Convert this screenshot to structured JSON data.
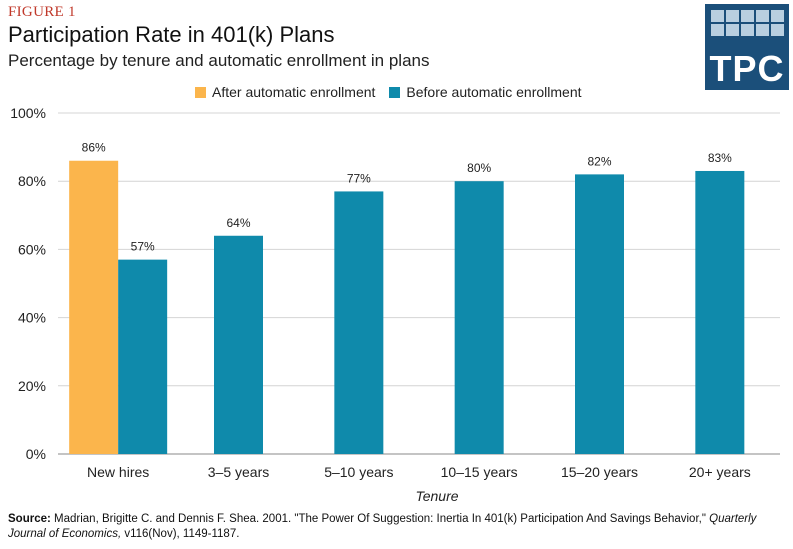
{
  "header": {
    "figure_label": "FIGURE 1",
    "title": "Participation Rate in 401(k) Plans",
    "subtitle": "Percentage by tenure and automatic enrollment in plans"
  },
  "logo": {
    "text": "TPC"
  },
  "legend": [
    {
      "label": "After automatic enrollment",
      "color": "#fbb54c"
    },
    {
      "label": "Before automatic enrollment",
      "color": "#0f8aab"
    }
  ],
  "chart_data": {
    "type": "bar",
    "categories": [
      "New hires",
      "3–5 years",
      "5–10 years",
      "10–15 years",
      "15–20 years",
      "20+ years"
    ],
    "series": [
      {
        "name": "After automatic enrollment",
        "color": "#fbb54c",
        "values": [
          86,
          null,
          null,
          null,
          null,
          null
        ]
      },
      {
        "name": "Before automatic enrollment",
        "color": "#0f8aab",
        "values": [
          57,
          64,
          77,
          80,
          82,
          83
        ]
      }
    ],
    "data_labels": {
      "after": [
        "86%",
        null,
        null,
        null,
        null,
        null
      ],
      "before": [
        "57%",
        "64%",
        "77%",
        "80%",
        "82%",
        "83%"
      ]
    },
    "xlabel": "Tenure",
    "ylabel": "",
    "ylim": [
      0,
      100
    ],
    "yticks": [
      0,
      20,
      40,
      60,
      80,
      100
    ],
    "ytick_labels": [
      "0%",
      "20%",
      "40%",
      "60%",
      "80%",
      "100%"
    ],
    "grid": true,
    "legend_position": "top"
  },
  "source": {
    "label": "Source:",
    "text_before": "Madrian, Brigitte C. and Dennis F. Shea. 2001. \"The Power Of Suggestion: Inertia In 401(k) Participation And Savings Behavior,\"",
    "journal": "Quarterly Journal of Economics,",
    "text_after": "v116(Nov), 1149-1187."
  }
}
